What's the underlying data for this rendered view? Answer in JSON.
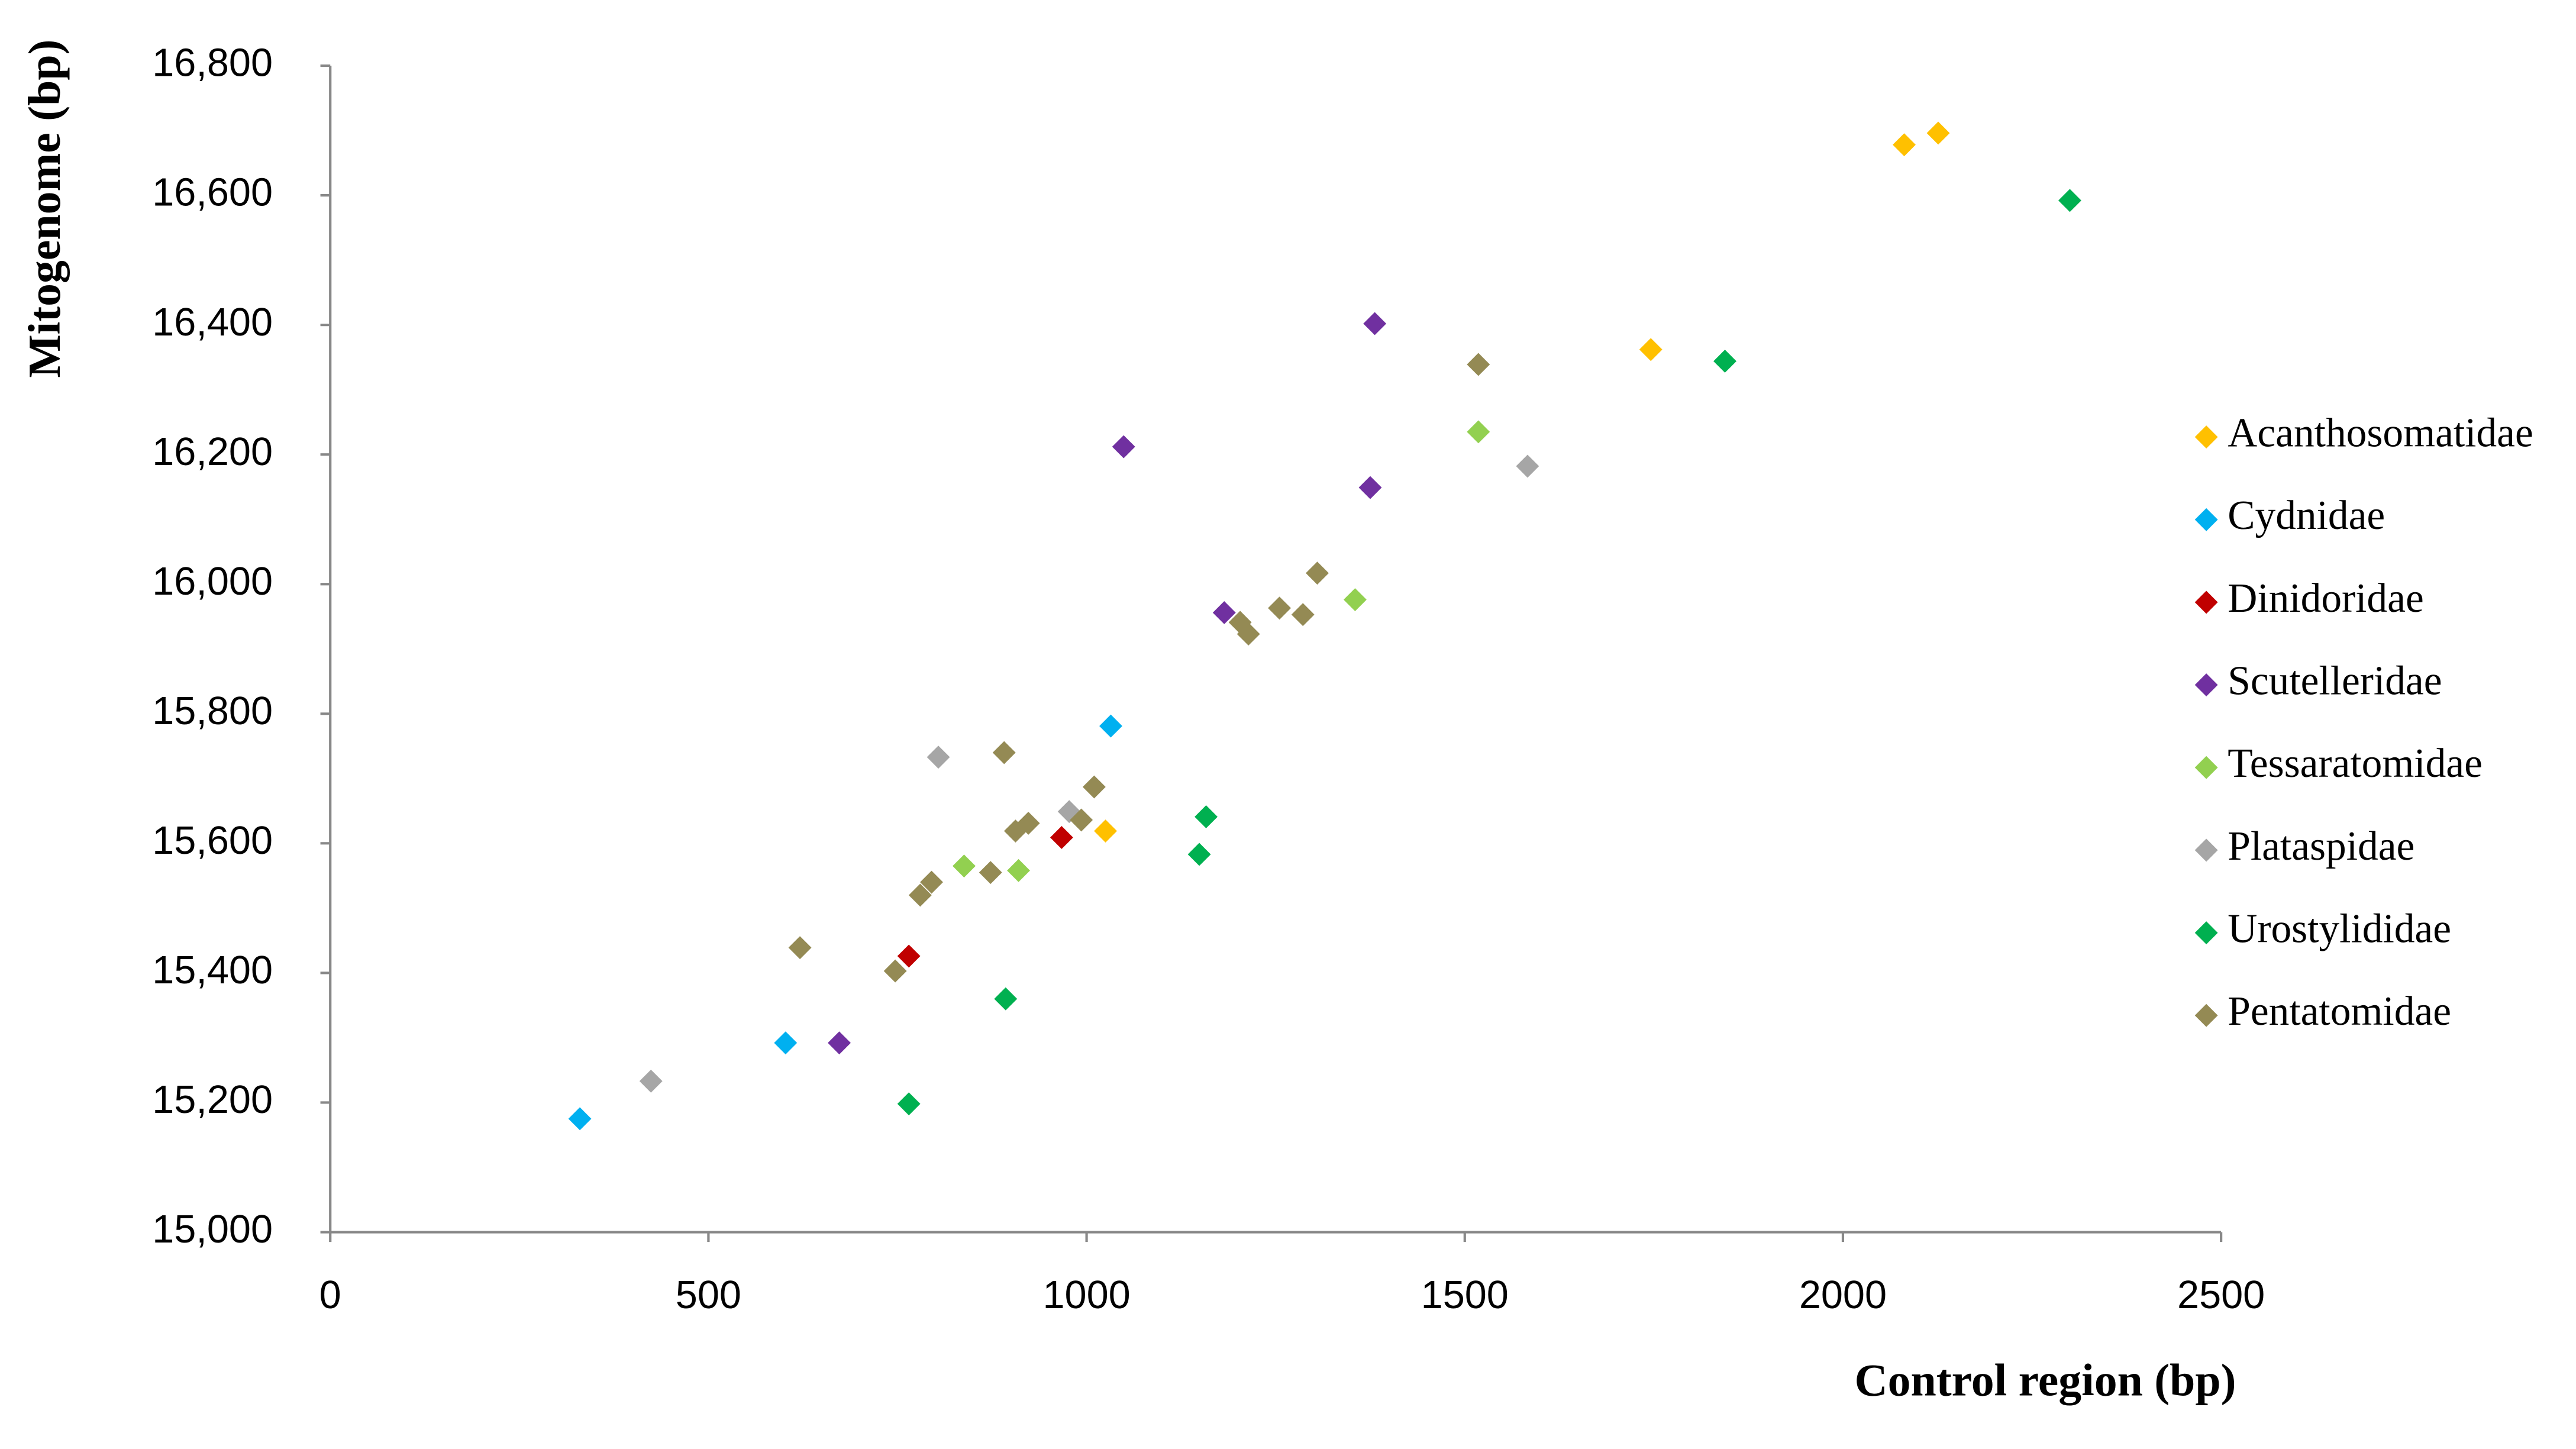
{
  "chart_data": {
    "type": "scatter",
    "x_label": "Control region (bp)",
    "y_label": "Mitogenome (bp)",
    "xlim": [
      0,
      2500
    ],
    "xticks": [
      0,
      500,
      1000,
      1500,
      2000,
      2500
    ],
    "ylim": [
      15000,
      16800
    ],
    "yticks": [
      {
        "value": 15000,
        "label": "15,000"
      },
      {
        "value": 15200,
        "label": "15,200"
      },
      {
        "value": 15400,
        "label": "15,400"
      },
      {
        "value": 15600,
        "label": "15,600"
      },
      {
        "value": 15800,
        "label": "15,800"
      },
      {
        "value": 16000,
        "label": "16,000"
      },
      {
        "value": 16200,
        "label": "16,200"
      },
      {
        "value": 16400,
        "label": "16,400"
      },
      {
        "value": 16600,
        "label": "16,600"
      },
      {
        "value": 16800,
        "label": "16,800"
      }
    ],
    "legend": "right",
    "series": [
      {
        "name": "Acanthosomatidae",
        "color": "#ffc000",
        "x": [
          2081,
          2126,
          1746,
          1025
        ],
        "values": [
          16678,
          16696,
          16362,
          15619
        ]
      },
      {
        "name": "Cydnidae",
        "color": "#00b0f0",
        "x": [
          330,
          602,
          1032
        ],
        "values": [
          15175,
          15292,
          15781
        ]
      },
      {
        "name": "Dinidoridae",
        "color": "#c00000",
        "x": [
          765,
          967
        ],
        "values": [
          15426,
          15609
        ]
      },
      {
        "name": "Scutelleridae",
        "color": "#7030a0",
        "x": [
          1381,
          1049,
          1375,
          1182,
          673
        ],
        "values": [
          16402,
          16212,
          16149,
          15956,
          15292
        ]
      },
      {
        "name": "Tessaratomidae",
        "color": "#92d050",
        "x": [
          1518,
          1355,
          838,
          910
        ],
        "values": [
          16235,
          15976,
          15565,
          15558
        ]
      },
      {
        "name": "Plataspidae",
        "color": "#a6a6a6",
        "x": [
          1583,
          804,
          977,
          424
        ],
        "values": [
          16182,
          15733,
          15649,
          15233
        ]
      },
      {
        "name": "Urostylididae",
        "color": "#00b050",
        "x": [
          2300,
          1844,
          1158,
          1149,
          893,
          765
        ],
        "values": [
          16592,
          16344,
          15641,
          15583,
          15360,
          15198
        ]
      },
      {
        "name": "Pentatomidae",
        "color": "#948a54",
        "x": [
          1518,
          1305,
          1255,
          1286,
          1203,
          1214,
          891,
          1010,
          923,
          906,
          993,
          873,
          795,
          780,
          621,
          747
        ],
        "values": [
          16339,
          16017,
          15963,
          15953,
          15941,
          15923,
          15740,
          15687,
          15631,
          15619,
          15636,
          15555,
          15540,
          15520,
          15439,
          15403
        ]
      }
    ]
  }
}
